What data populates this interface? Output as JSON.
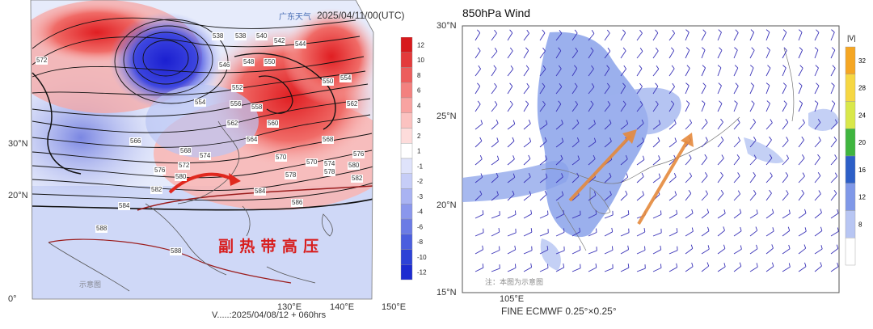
{
  "left_panel": {
    "logo_text": "广东天气",
    "valid_time": "2025/04/11/00(UTC)",
    "footer": "V.....:2025/04/08/12 + 060hrs",
    "annotation": "副 热 带 高 压",
    "watermark": "示意图",
    "lat_ticks": [
      "30°N",
      "20°N",
      "0°"
    ],
    "lon_ticks": [
      "130°E",
      "140°E",
      "150°E"
    ],
    "contour_labels": [
      "572",
      "538",
      "538",
      "540",
      "542",
      "544",
      "546",
      "548",
      "550",
      "550",
      "552",
      "554",
      "554",
      "556",
      "558",
      "560",
      "562",
      "562",
      "564",
      "566",
      "568",
      "568",
      "570",
      "570",
      "572",
      "574",
      "574",
      "576",
      "576",
      "578",
      "578",
      "580",
      "580",
      "582",
      "582",
      "584",
      "584",
      "586",
      "588",
      "588"
    ],
    "colors": {
      "warm": "#e8262a",
      "cold": "#2b2ed6",
      "arrow": "#e0281e",
      "annotation": "#d81e1e",
      "contour": "#111111",
      "ridge": "#9b1c1c"
    }
  },
  "right_panel": {
    "title": "850hPa Wind",
    "footer": "FINE ECMWF 0.25°×0.25°",
    "watermark": "注：本图为示意图",
    "lat_ticks": [
      "30°N",
      "25°N",
      "20°N",
      "15°N"
    ],
    "lon_ticks": [
      "105°E"
    ],
    "colors": {
      "barb": "#3a33b8",
      "shade": "#7f98e8",
      "arrow": "#e58a3c"
    }
  },
  "chart_data": [
    {
      "type": "heatmap",
      "title": "",
      "colorbar": {
        "ticks": [
          12,
          10,
          8,
          6,
          4,
          3,
          2,
          1,
          -1,
          -2,
          -3,
          -4,
          -6,
          -8,
          -10,
          -12
        ]
      },
      "contour_labels_range": [
        538,
        588
      ],
      "lat_range": [
        "0°",
        "40°N"
      ],
      "lon_range": [
        "60°E",
        "150°E"
      ]
    },
    {
      "type": "heatmap",
      "title": "850hPa Wind",
      "colorbar": {
        "label": "|V|",
        "ticks": [
          32,
          28,
          24,
          20,
          16,
          12,
          8
        ]
      },
      "lat_range": [
        "15°N",
        "30°N"
      ],
      "lon_range": [
        "95°E",
        "125°E"
      ]
    }
  ]
}
